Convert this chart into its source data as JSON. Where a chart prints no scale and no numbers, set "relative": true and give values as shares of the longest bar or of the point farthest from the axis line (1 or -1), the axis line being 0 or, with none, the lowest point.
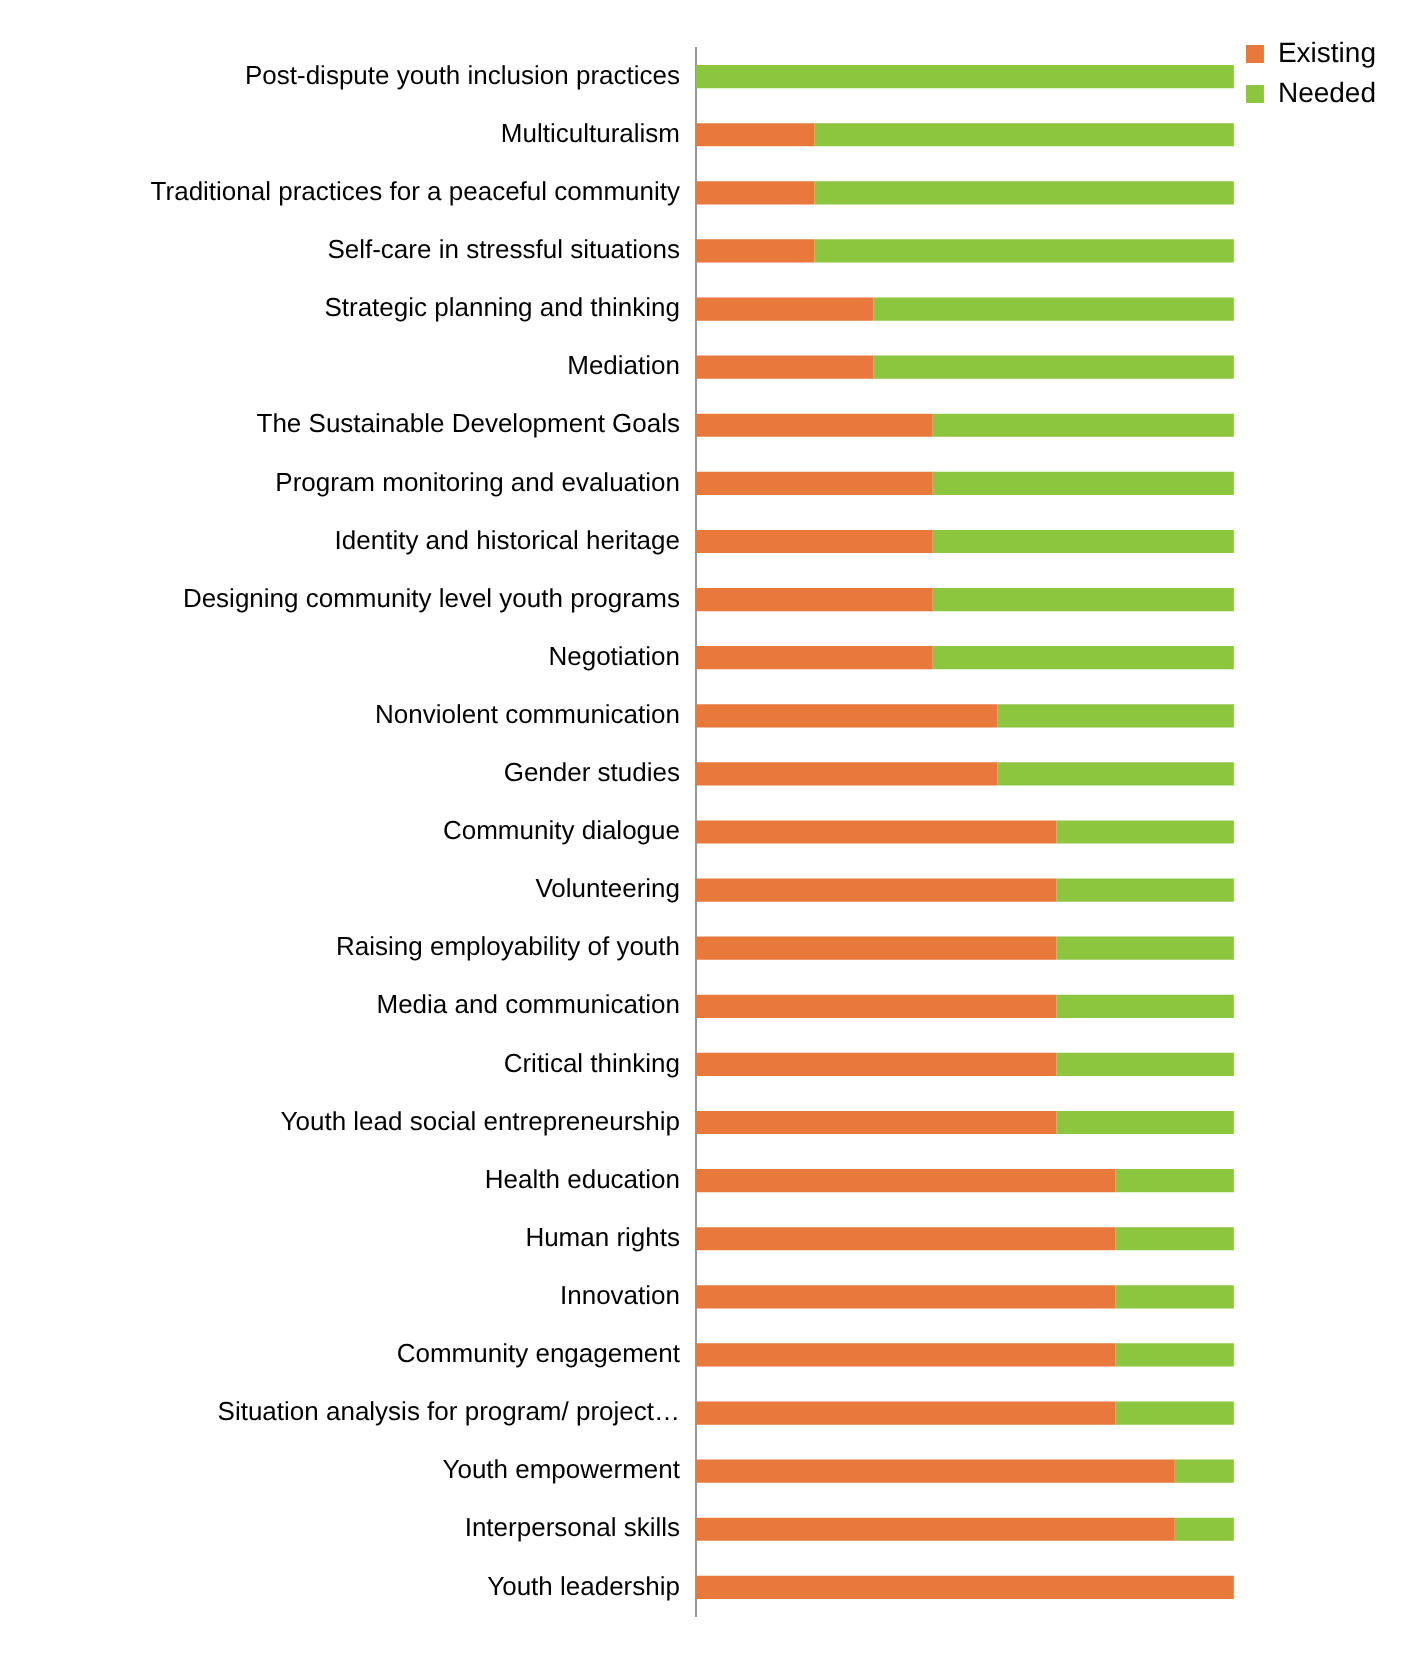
{
  "chart_data": {
    "type": "bar",
    "orientation": "horizontal",
    "stacked": true,
    "relative": true,
    "legend": "top right",
    "tick_labels": "y",
    "categories": [
      "Post-dispute youth inclusion practices",
      "Multiculturalism",
      "Traditional practices for a peaceful community",
      "Self-care in stressful situations",
      "Strategic planning and thinking",
      "Mediation",
      "The Sustainable Development Goals",
      "Program monitoring and evaluation",
      "Identity and historical heritage",
      "Designing community level youth programs",
      "Negotiation",
      "Nonviolent communication",
      "Gender studies",
      "Community dialogue",
      "Volunteering",
      "Raising employability of youth",
      "Media and communication",
      "Critical thinking",
      "Youth lead social entrepreneurship",
      "Health education",
      "Human rights",
      "Innovation",
      "Community engagement",
      "Situation analysis for program/ project…",
      "Youth empowerment",
      "Interpersonal skills",
      "Youth leadership"
    ],
    "series": [
      {
        "name": "Existing",
        "color": "#e8793a",
        "values": [
          0,
          0.22,
          0.22,
          0.22,
          0.33,
          0.33,
          0.44,
          0.44,
          0.44,
          0.44,
          0.44,
          0.56,
          0.56,
          0.67,
          0.67,
          0.67,
          0.67,
          0.67,
          0.67,
          0.78,
          0.78,
          0.78,
          0.78,
          0.78,
          0.89,
          0.89,
          1
        ]
      },
      {
        "name": "Needed",
        "color": "#8cc63f",
        "values": [
          1,
          0.78,
          0.78,
          0.78,
          0.67,
          0.67,
          0.56,
          0.56,
          0.56,
          0.56,
          0.56,
          0.44,
          0.44,
          0.33,
          0.33,
          0.33,
          0.33,
          0.33,
          0.33,
          0.22,
          0.22,
          0.22,
          0.22,
          0.22,
          0.11,
          0.11,
          0
        ]
      }
    ]
  }
}
